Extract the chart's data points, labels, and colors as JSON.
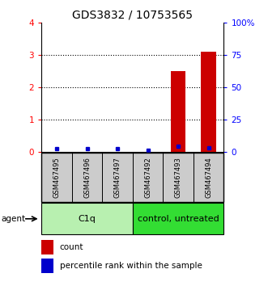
{
  "title": "GDS3832 / 10753565",
  "samples": [
    "GSM467495",
    "GSM467496",
    "GSM467497",
    "GSM467492",
    "GSM467493",
    "GSM467494"
  ],
  "count_values": [
    0,
    0,
    0,
    0,
    2.5,
    3.1
  ],
  "percentile_values": [
    2,
    2,
    2,
    1,
    4,
    3
  ],
  "ylim_left": [
    0,
    4
  ],
  "ylim_right": [
    0,
    100
  ],
  "yticks_left": [
    0,
    1,
    2,
    3,
    4
  ],
  "ytick_labels_left": [
    "0",
    "1",
    "2",
    "3",
    "4"
  ],
  "yticks_right": [
    0,
    25,
    50,
    75,
    100
  ],
  "ytick_labels_right": [
    "0",
    "25",
    "50",
    "75",
    "100%"
  ],
  "bar_color": "#cc0000",
  "dot_color": "#0000cc",
  "group_color_c1q": "#b8f0b0",
  "group_color_control": "#33dd33",
  "sample_box_color": "#cccccc",
  "legend_count_color": "#cc0000",
  "legend_pct_color": "#0000cc",
  "title_fontsize": 10,
  "tick_fontsize": 7.5,
  "bar_width": 0.5,
  "gridline_ticks": [
    1,
    2,
    3
  ],
  "group_info": [
    [
      0,
      3,
      "C1q",
      "#b8f0b0"
    ],
    [
      3,
      6,
      "control, untreated",
      "#33dd33"
    ]
  ]
}
